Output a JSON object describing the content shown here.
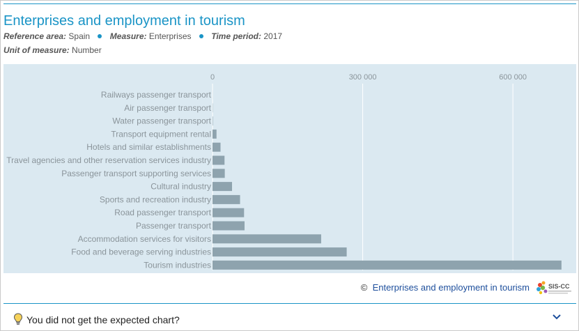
{
  "header": {
    "title": "Enterprises and employment in tourism",
    "reference_area_key": "Reference area:",
    "reference_area_value": "Spain",
    "measure_key": "Measure:",
    "measure_value": "Enterprises",
    "time_period_key": "Time period:",
    "time_period_value": "2017",
    "unit_key": "Unit of measure:",
    "unit_value": "Number"
  },
  "chart_data": {
    "type": "bar",
    "orientation": "horizontal",
    "categories": [
      "Railways passenger transport",
      "Air passenger transport",
      "Water passenger transport",
      "Transport equipment rental",
      "Hotels and similar establishments",
      "Travel agencies and other reservation services industry",
      "Passenger transport supporting services",
      "Cultural industry",
      "Sports and recreation industry",
      "Road passenger transport",
      "Passenger transport",
      "Accommodation services for visitors",
      "Food and beverage serving industries",
      "Tourism industries"
    ],
    "values": [
      70,
      400,
      700,
      8000,
      16000,
      24000,
      24500,
      39000,
      55000,
      63000,
      64000,
      217000,
      268000,
      697000
    ],
    "xlim": [
      0,
      700000
    ],
    "ticks": [
      0,
      300000,
      600000
    ],
    "tick_labels": [
      "0",
      "300 000",
      "600 000"
    ],
    "axis_position": "top",
    "grid": true,
    "bar_color": "#8ea3ae",
    "background_color": "#dbe9f1"
  },
  "footer": {
    "copyright_symbol": "©",
    "source_link": "Enterprises and employment in tourism",
    "logo_text": "SIS-CC",
    "feedback_label": "You did not get the expected chart?"
  },
  "colors": {
    "accent": "#1a94c6",
    "link": "#1e4f9c",
    "label_text": "#8a949a"
  }
}
